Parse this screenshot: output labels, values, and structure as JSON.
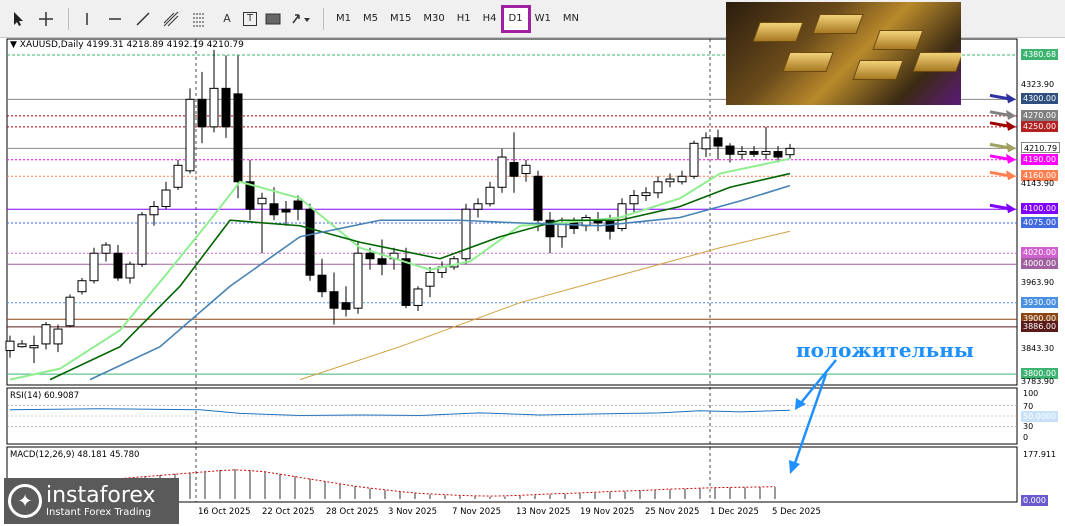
{
  "toolbar": {
    "tools": [
      {
        "name": "cursor-icon"
      },
      {
        "name": "crosshair-icon"
      },
      {
        "name": "vertical-line-icon"
      },
      {
        "name": "horizontal-line-icon"
      },
      {
        "name": "trendline-icon"
      },
      {
        "name": "channel-icon"
      },
      {
        "name": "fibonacci-icon"
      },
      {
        "name": "text-icon",
        "label": "A"
      },
      {
        "name": "text-label-icon",
        "label": "T"
      },
      {
        "name": "rectangle-icon"
      },
      {
        "name": "arrows-icon"
      }
    ],
    "timeframes": [
      "M1",
      "M5",
      "M15",
      "M30",
      "H1",
      "H4",
      "D1",
      "W1",
      "MN"
    ],
    "active_timeframe": "D1"
  },
  "chart": {
    "header": "XAUUSD,Daily  4199.31 4218.89 4192.19 4210.79",
    "price_levels": [
      {
        "value": "4380.68",
        "color": "#3cb371"
      },
      {
        "value": "4323.90",
        "color": ""
      },
      {
        "value": "4300.00",
        "color": "#2f4f7f"
      },
      {
        "value": "4270.00",
        "color": "#808080"
      },
      {
        "value": "4250.00",
        "color": "#b22222"
      },
      {
        "value": "4210.79",
        "color": "#ffffff"
      },
      {
        "value": "4190.00",
        "color": "#ff00ff"
      },
      {
        "value": "4160.00",
        "color": "#ff7f50"
      },
      {
        "value": "4143.90",
        "color": ""
      },
      {
        "value": "4100.00",
        "color": "#8000ff"
      },
      {
        "value": "4075.00",
        "color": "#4169e1"
      },
      {
        "value": "4020.00",
        "color": "#d060d0"
      },
      {
        "value": "4000.00",
        "color": "#a060a0"
      },
      {
        "value": "3963.90",
        "color": ""
      },
      {
        "value": "3930.00",
        "color": "#4a90e2"
      },
      {
        "value": "3900.00",
        "color": "#8b4513"
      },
      {
        "value": "3886.00",
        "color": "#5a1a1a"
      },
      {
        "value": "3843.30",
        "color": ""
      },
      {
        "value": "3800.00",
        "color": "#3cb371"
      },
      {
        "value": "3783.90",
        "color": ""
      }
    ],
    "x_labels": [
      "16 Oct 2025",
      "22 Oct 2025",
      "28 Oct 2025",
      "3 Nov 2025",
      "7 Nov 2025",
      "13 Nov 2025",
      "19 Nov 2025",
      "25 Nov 2025",
      "1 Dec 2025",
      "5 Dec 2025"
    ],
    "rsi": {
      "header": "RSI(14) 60.9087",
      "levels": [
        "100",
        "70",
        "50.0000",
        "30",
        "0"
      ]
    },
    "macd": {
      "header": "MACD(12,26,9) 48.181 45.780",
      "levels": [
        "177.911",
        "0.000"
      ]
    },
    "annotation": "положительны"
  },
  "brand": {
    "name": "instaforex",
    "tagline": "Instant Forex Trading"
  }
}
